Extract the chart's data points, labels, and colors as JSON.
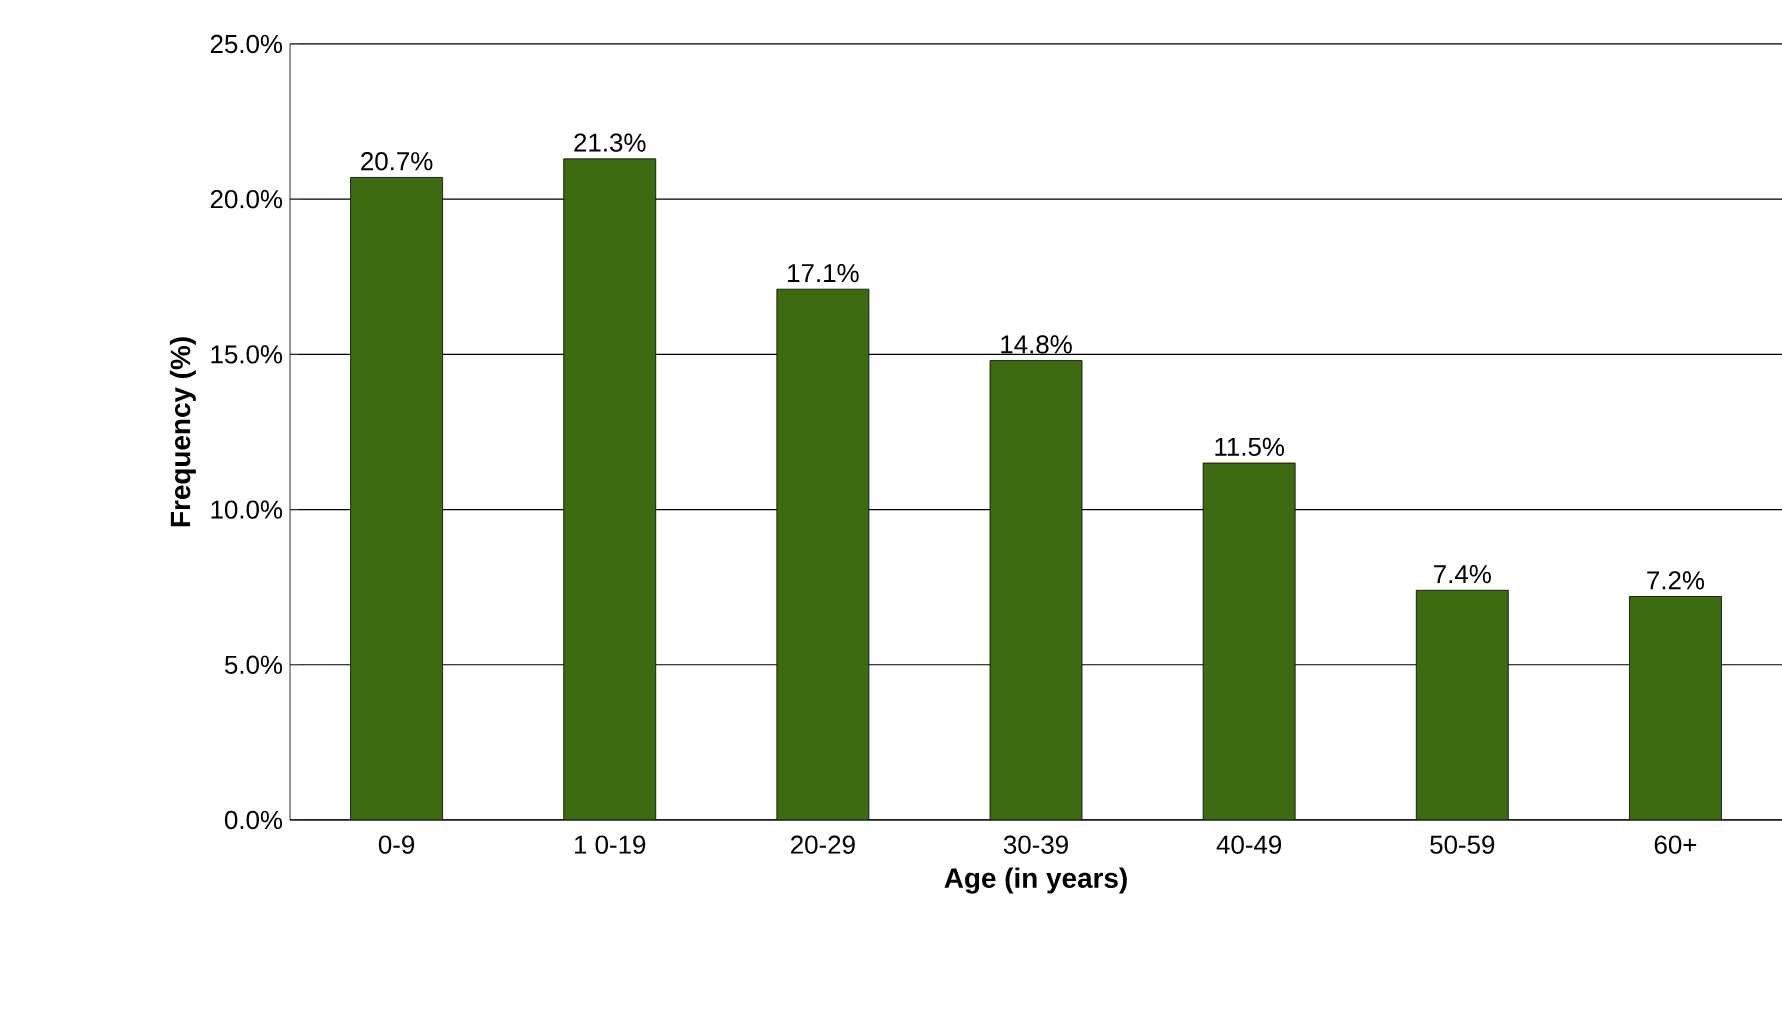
{
  "chart_data": {
    "type": "bar",
    "xlabel": "Age (in years)",
    "ylabel": "Frequency (%)",
    "categories": [
      "0-9",
      "1 0-19",
      "20-29",
      "30-39",
      "40-49",
      "50-59",
      "60+"
    ],
    "values": [
      20.7,
      21.3,
      17.1,
      14.8,
      11.5,
      7.4,
      7.2
    ],
    "value_labels": [
      "20.7%",
      "21.3%",
      "17.1%",
      "14.8%",
      "11.5%",
      "7.4%",
      "7.2%"
    ],
    "color": "#3d6b12",
    "ylim": [
      0,
      25
    ],
    "yticks": [
      {
        "value": 0,
        "label": "0.0%"
      },
      {
        "value": 5,
        "label": "5.0%"
      },
      {
        "value": 10,
        "label": "10.0%"
      },
      {
        "value": 15,
        "label": "15.0%"
      },
      {
        "value": 20,
        "label": "20.0%"
      },
      {
        "value": 25,
        "label": "25.0%"
      }
    ],
    "grid": "y"
  }
}
